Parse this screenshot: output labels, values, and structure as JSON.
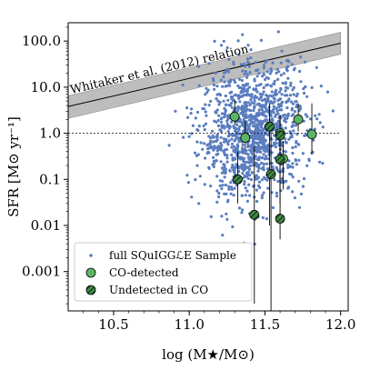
{
  "chart_data": {
    "type": "scatter",
    "title": "",
    "xlabel": "log (M★/M⊙)",
    "ylabel": "SFR [M⊙ yr⁻¹]",
    "xlim": [
      10.2,
      12.05
    ],
    "ylim": [
      0.00014,
      250
    ],
    "y_scale": "log",
    "x_ticks": [
      "10.5",
      "11.0",
      "11.5",
      "12.0"
    ],
    "y_ticks": [
      "0.001",
      "0.01",
      "0.1",
      "1.0",
      "10.0",
      "100.0"
    ],
    "annotation": "Whitaker et al. (2012) relation",
    "legend_position": "lower-left",
    "colors": {
      "sample": "#5a7dbf",
      "detected": "#5cb567",
      "undetected": "#2f6b34",
      "band": "#bdbdbd"
    },
    "series": [
      {
        "name": "full SQuIGGℒE Sample",
        "marker": "small-dot"
      },
      {
        "name": "CO-detected",
        "marker": "circle",
        "points": [
          {
            "x": 11.3,
            "y": 2.3,
            "yerr_lo": 0.8,
            "yerr_hi": 3.0
          },
          {
            "x": 11.37,
            "y": 0.8,
            "yerr_lo": 0.35,
            "yerr_hi": 1.1
          },
          {
            "x": 11.6,
            "y": 1.0,
            "yerr_lo": 0.5,
            "yerr_hi": 1.5
          },
          {
            "x": 11.62,
            "y": 0.28,
            "yerr_lo": 0.22,
            "yerr_hi": 0.4
          },
          {
            "x": 11.72,
            "y": 2.0,
            "yerr_lo": 0.9,
            "yerr_hi": 2.5
          },
          {
            "x": 11.81,
            "y": 0.95,
            "yerr_lo": 0.6,
            "yerr_hi": 3.5
          }
        ]
      },
      {
        "name": "Undetected in CO",
        "marker": "hatched-circle",
        "points": [
          {
            "x": 11.32,
            "y": 0.1,
            "yerr_lo": 0.07,
            "yerr_hi": 0.3
          },
          {
            "x": 11.43,
            "y": 0.017,
            "yerr_lo": 0.0168,
            "yerr_hi": 0.5
          },
          {
            "x": 11.53,
            "y": 1.4,
            "yerr_lo": 1.39,
            "yerr_hi": 3.0
          },
          {
            "x": 11.54,
            "y": 0.13,
            "yerr_lo": 0.1299,
            "yerr_hi": 0.9
          },
          {
            "x": 11.6,
            "y": 0.9,
            "yerr_lo": 0.8,
            "yerr_hi": 1.5
          },
          {
            "x": 11.6,
            "y": 0.27,
            "yerr_lo": 0.24,
            "yerr_hi": 0.6
          },
          {
            "x": 11.6,
            "y": 0.014,
            "yerr_lo": 0.009,
            "yerr_hi": 0.1
          }
        ]
      }
    ],
    "reference_line": {
      "y": 1.0,
      "style": "dotted"
    },
    "relation_band": {
      "x": [
        10.2,
        12.0
      ],
      "center_y": [
        3.8,
        90
      ],
      "upper_y": [
        6.5,
        155
      ],
      "lower_y": [
        2.1,
        52
      ]
    }
  }
}
